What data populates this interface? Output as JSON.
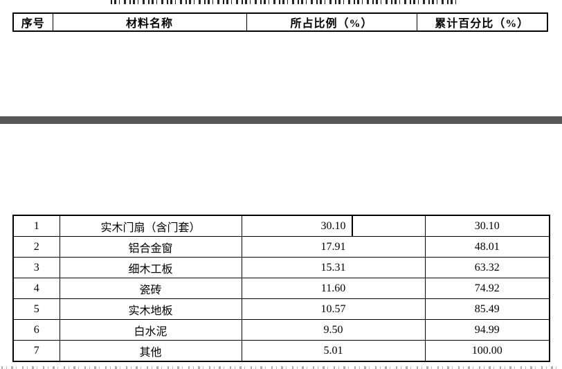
{
  "document": {
    "separator_color": "#58585a",
    "border_color": "#000000",
    "background": "#ffffff"
  },
  "header_table": {
    "columns": [
      "序号",
      "材料名称",
      "所占比例（%）",
      "累计百分比（%）"
    ]
  },
  "table": {
    "rows": [
      {
        "no": "1",
        "name": "实木门扇（含门套）",
        "pct": "30.10",
        "cum": "30.10",
        "caret": true
      },
      {
        "no": "2",
        "name": "铝合金窗",
        "pct": "17.91",
        "cum": "48.01",
        "caret": false
      },
      {
        "no": "3",
        "name": "细木工板",
        "pct": "15.31",
        "cum": "63.32",
        "caret": false
      },
      {
        "no": "4",
        "name": "瓷砖",
        "pct": "11.60",
        "cum": "74.92",
        "caret": false
      },
      {
        "no": "5",
        "name": "实木地板",
        "pct": "10.57",
        "cum": "85.49",
        "caret": false
      },
      {
        "no": "6",
        "name": "白水泥",
        "pct": "9.50",
        "cum": "94.99",
        "caret": false
      },
      {
        "no": "7",
        "name": "其他",
        "pct": "5.01",
        "cum": "100.00",
        "caret": false
      }
    ]
  },
  "chart_data": {
    "type": "table",
    "title": "",
    "columns": [
      "序号",
      "材料名称",
      "所占比例（%）",
      "累计百分比（%）"
    ],
    "values": [
      [
        1,
        "实木门扇（含门套）",
        30.1,
        30.1
      ],
      [
        2,
        "铝合金窗",
        17.91,
        48.01
      ],
      [
        3,
        "细木工板",
        15.31,
        63.32
      ],
      [
        4,
        "瓷砖",
        11.6,
        74.92
      ],
      [
        5,
        "实木地板",
        10.57,
        85.49
      ],
      [
        6,
        "白水泥",
        9.5,
        94.99
      ],
      [
        7,
        "其他",
        5.01,
        100.0
      ]
    ]
  }
}
